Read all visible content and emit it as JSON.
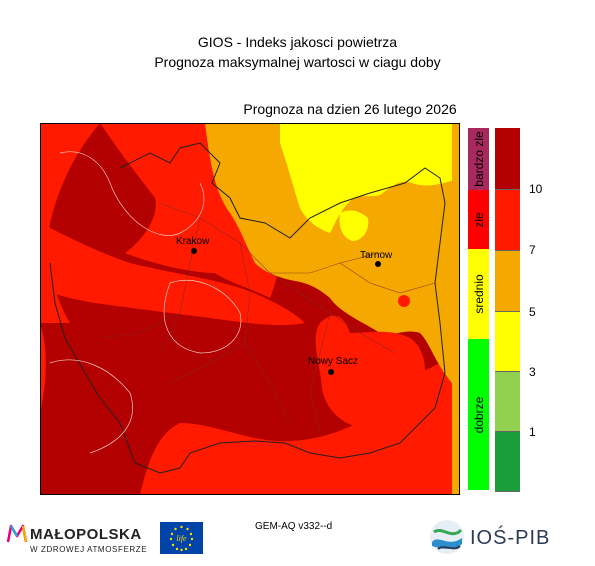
{
  "header": {
    "title_line1": "GIOS - Indeks jakosci powietrza",
    "title_line2": "Prognoza maksymalnej wartosci w ciagu doby",
    "date_label": "Prognoza na dzien  26 lutego 2026"
  },
  "map": {
    "cities": [
      {
        "name": "Krakow"
      },
      {
        "name": "Tarnow"
      },
      {
        "name": "Nowy Sacz"
      }
    ],
    "colors": {
      "dark_red": "#b30000",
      "red": "#ff1a00",
      "orange": "#f5a800",
      "yellow": "#ffff00"
    }
  },
  "legend": {
    "categories": [
      {
        "label": "bardzo zle",
        "color": "#a8295d"
      },
      {
        "label": "zle",
        "color": "#ff0000"
      },
      {
        "label": "srednio",
        "color": "#ffff00"
      },
      {
        "label": "dobrze",
        "color": "#00ff00"
      }
    ],
    "scale": [
      {
        "color": "#b30000"
      },
      {
        "color": "#ff1a00"
      },
      {
        "color": "#f5a800"
      },
      {
        "color": "#ffff00"
      },
      {
        "color": "#92d050"
      },
      {
        "color": "#1a9f3c"
      }
    ],
    "ticks": [
      "10",
      "7",
      "5",
      "3",
      "1"
    ]
  },
  "footer": {
    "model": "GEM-AQ v332--d",
    "malopolska_name": "MAŁOPOLSKA",
    "malopolska_sub": "W ZDROWEJ ATMOSFERZE",
    "eu_logo_text": "life",
    "institute": "IOŚ-PIB"
  }
}
